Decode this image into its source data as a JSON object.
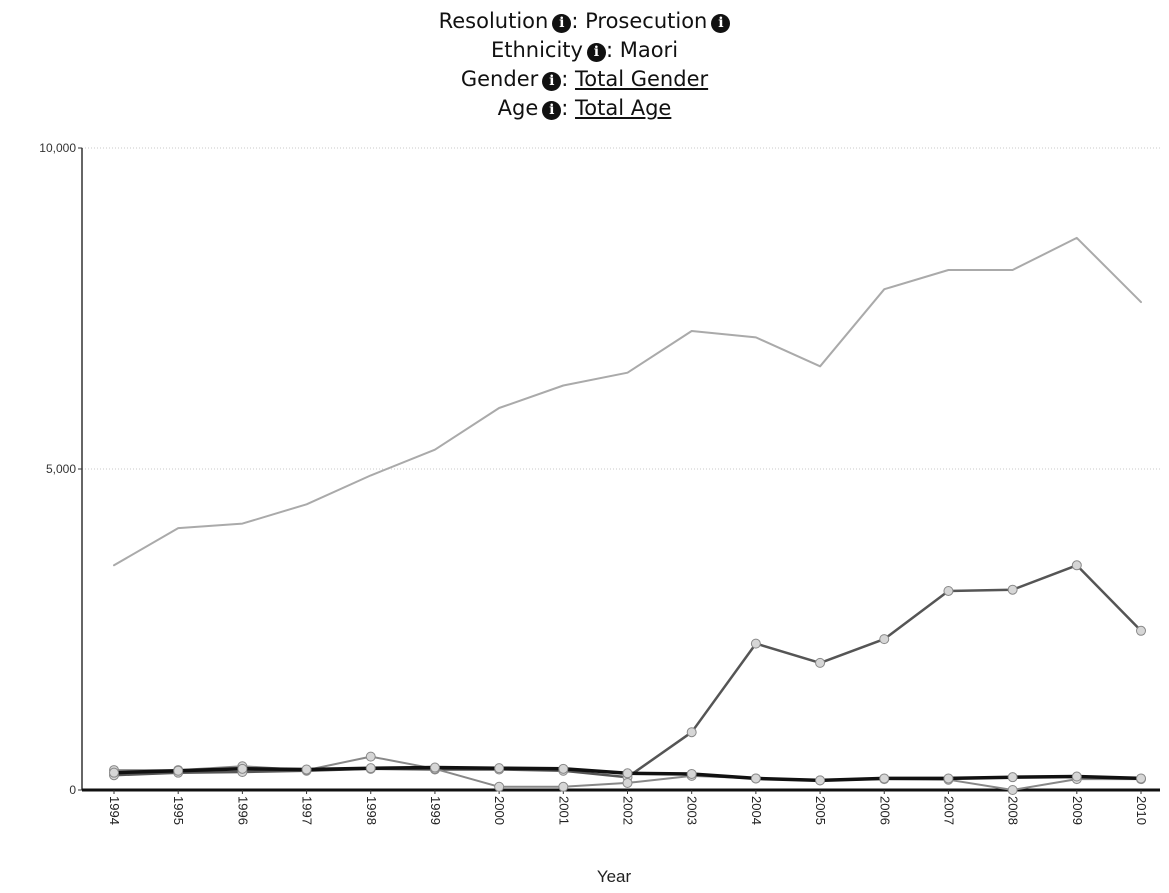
{
  "header": {
    "resolution_label": "Resolution",
    "resolution_value": "Prosecution",
    "ethnicity_label": "Ethnicity",
    "ethnicity_value": "Maori",
    "gender_label": "Gender",
    "gender_value": "Total Gender",
    "age_label": "Age",
    "age_value": "Total Age",
    "info_glyph": "i"
  },
  "chart_data": {
    "type": "line",
    "title": "",
    "xlabel": "Year",
    "ylabel": "",
    "ylim": [
      0,
      10000
    ],
    "yticks": [
      "0",
      "5,000",
      "10,000"
    ],
    "categories": [
      "1994",
      "1995",
      "1996",
      "1997",
      "1998",
      "1999",
      "2000",
      "2001",
      "2002",
      "2003",
      "2004",
      "2005",
      "2006",
      "2007",
      "2008",
      "2009",
      "2010"
    ],
    "grid": true,
    "series": [
      {
        "color": "#aaaaaa",
        "width": 2,
        "markers": false,
        "values": [
          3500,
          4080,
          4150,
          4450,
          4900,
          5300,
          5950,
          6300,
          6500,
          7150,
          7050,
          6600,
          7800,
          8100,
          8100,
          8600,
          7600
        ]
      },
      {
        "color": "#555555",
        "width": 2.5,
        "markers": true,
        "values": [
          230,
          270,
          280,
          300,
          330,
          320,
          320,
          300,
          200,
          900,
          2280,
          1980,
          2350,
          3100,
          3120,
          3500,
          2480
        ]
      },
      {
        "color": "#888888",
        "width": 2,
        "markers": true,
        "values": [
          310,
          310,
          370,
          310,
          520,
          330,
          50,
          50,
          110,
          220,
          180,
          150,
          170,
          160,
          0,
          170,
          170
        ]
      },
      {
        "color": "#111111",
        "width": 3.5,
        "markers": true,
        "values": [
          270,
          300,
          330,
          320,
          340,
          350,
          340,
          330,
          260,
          250,
          180,
          150,
          180,
          180,
          200,
          210,
          180
        ]
      }
    ]
  }
}
